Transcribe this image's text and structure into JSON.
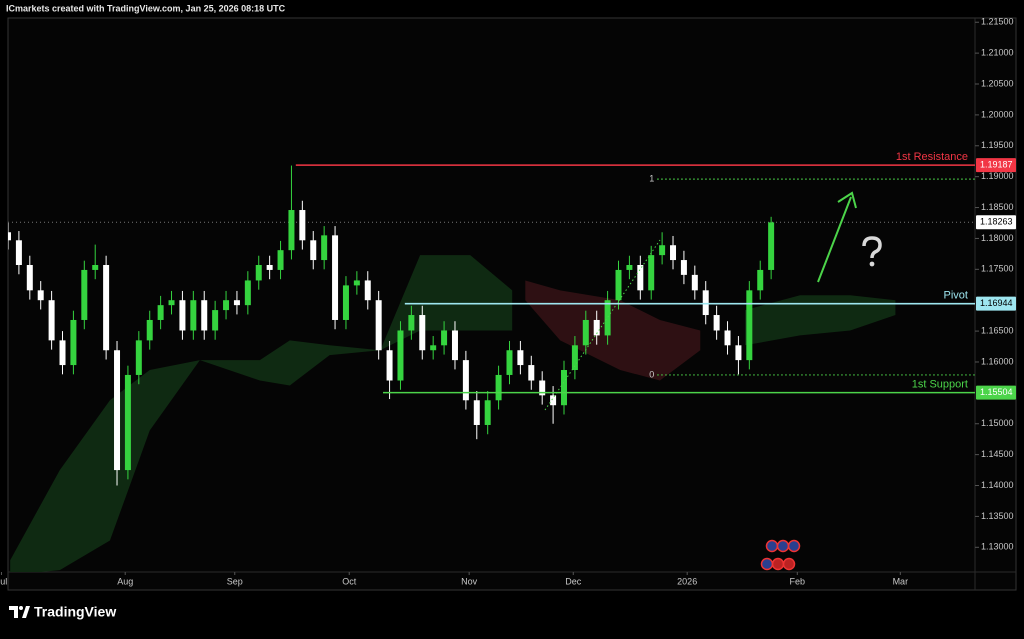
{
  "header": "ICmarkets created with TradingView.com, Jan 25, 2026 08:18 UTC",
  "footer": "TradingView",
  "chart_data": {
    "type": "candlestick",
    "up_color": "#35d43f",
    "down_color": "#ffffff",
    "x": [
      0,
      2,
      4,
      6,
      8,
      10,
      12,
      14,
      16,
      18,
      20,
      22,
      24,
      26,
      28,
      30,
      32,
      34,
      36,
      38,
      40,
      42,
      44,
      46,
      48,
      50,
      52,
      54,
      56,
      58,
      60,
      62,
      64,
      66,
      68,
      70,
      72,
      74,
      76,
      78,
      80,
      82,
      84,
      86,
      88,
      90,
      92,
      94,
      96,
      98,
      100,
      102,
      104,
      106,
      108,
      110,
      112,
      114,
      116,
      118,
      120,
      122,
      124,
      126,
      128,
      130,
      132,
      134,
      136,
      138,
      140
    ],
    "candles": [
      [
        1.181,
        1.1825,
        1.1782,
        1.1797
      ],
      [
        1.1797,
        1.1812,
        1.1742,
        1.1757
      ],
      [
        1.1757,
        1.1772,
        1.1701,
        1.1716
      ],
      [
        1.1716,
        1.1731,
        1.1685,
        1.17
      ],
      [
        1.17,
        1.1715,
        1.162,
        1.1635
      ],
      [
        1.1635,
        1.165,
        1.158,
        1.1595
      ],
      [
        1.1595,
        1.1683,
        1.158,
        1.1668
      ],
      [
        1.1668,
        1.1764,
        1.1653,
        1.1749
      ],
      [
        1.1749,
        1.179,
        1.1734,
        1.1757
      ],
      [
        1.1757,
        1.1772,
        1.1604,
        1.1619
      ],
      [
        1.1619,
        1.1634,
        1.14,
        1.1425
      ],
      [
        1.1425,
        1.1594,
        1.141,
        1.1579
      ],
      [
        1.1579,
        1.165,
        1.1564,
        1.1635
      ],
      [
        1.1635,
        1.1683,
        1.162,
        1.1668
      ],
      [
        1.1668,
        1.1707,
        1.1653,
        1.1692
      ],
      [
        1.1692,
        1.1715,
        1.1677,
        1.17
      ],
      [
        1.17,
        1.1715,
        1.1636,
        1.1651
      ],
      [
        1.1651,
        1.1715,
        1.1636,
        1.17
      ],
      [
        1.17,
        1.1715,
        1.1636,
        1.1651
      ],
      [
        1.1651,
        1.1699,
        1.1636,
        1.1684
      ],
      [
        1.1684,
        1.1715,
        1.1669,
        1.17
      ],
      [
        1.17,
        1.1715,
        1.1677,
        1.1692
      ],
      [
        1.1692,
        1.1747,
        1.1677,
        1.1732
      ],
      [
        1.1732,
        1.1772,
        1.1717,
        1.1757
      ],
      [
        1.1757,
        1.1772,
        1.1734,
        1.1749
      ],
      [
        1.1749,
        1.1796,
        1.1734,
        1.1781
      ],
      [
        1.1781,
        1.1918,
        1.1766,
        1.1846
      ],
      [
        1.1846,
        1.1861,
        1.1782,
        1.1797
      ],
      [
        1.1797,
        1.1812,
        1.175,
        1.1765
      ],
      [
        1.1765,
        1.182,
        1.175,
        1.1805
      ],
      [
        1.1805,
        1.182,
        1.1653,
        1.1668
      ],
      [
        1.1668,
        1.1739,
        1.1653,
        1.1724
      ],
      [
        1.1724,
        1.1747,
        1.1709,
        1.1732
      ],
      [
        1.1732,
        1.1747,
        1.1685,
        1.17
      ],
      [
        1.17,
        1.1715,
        1.1604,
        1.1619
      ],
      [
        1.1619,
        1.1634,
        1.154,
        1.157
      ],
      [
        1.157,
        1.1666,
        1.1555,
        1.1651
      ],
      [
        1.1651,
        1.1691,
        1.1636,
        1.1676
      ],
      [
        1.1676,
        1.1691,
        1.1604,
        1.1619
      ],
      [
        1.1619,
        1.1642,
        1.1604,
        1.1627
      ],
      [
        1.1627,
        1.1666,
        1.1612,
        1.1651
      ],
      [
        1.1651,
        1.1666,
        1.1588,
        1.1603
      ],
      [
        1.1603,
        1.1618,
        1.1523,
        1.1538
      ],
      [
        1.1538,
        1.1553,
        1.1475,
        1.1498
      ],
      [
        1.1498,
        1.1553,
        1.1483,
        1.1538
      ],
      [
        1.1538,
        1.1594,
        1.1523,
        1.1579
      ],
      [
        1.1579,
        1.1634,
        1.1564,
        1.1619
      ],
      [
        1.1619,
        1.1634,
        1.158,
        1.1595
      ],
      [
        1.1595,
        1.161,
        1.1555,
        1.157
      ],
      [
        1.157,
        1.1585,
        1.1531,
        1.1546
      ],
      [
        1.1546,
        1.1561,
        1.15,
        1.153
      ],
      [
        1.153,
        1.1602,
        1.1515,
        1.1587
      ],
      [
        1.1587,
        1.1642,
        1.1572,
        1.1627
      ],
      [
        1.1627,
        1.1683,
        1.1612,
        1.1668
      ],
      [
        1.1668,
        1.1683,
        1.1628,
        1.1643
      ],
      [
        1.1643,
        1.1715,
        1.1628,
        1.17
      ],
      [
        1.17,
        1.1764,
        1.1685,
        1.1749
      ],
      [
        1.1749,
        1.1772,
        1.1734,
        1.1757
      ],
      [
        1.1757,
        1.1772,
        1.1701,
        1.1716
      ],
      [
        1.1716,
        1.1788,
        1.1701,
        1.1773
      ],
      [
        1.1773,
        1.181,
        1.1758,
        1.1789
      ],
      [
        1.1789,
        1.1804,
        1.175,
        1.1765
      ],
      [
        1.1765,
        1.178,
        1.1726,
        1.1741
      ],
      [
        1.1741,
        1.1756,
        1.1701,
        1.1716
      ],
      [
        1.1716,
        1.1731,
        1.1661,
        1.1676
      ],
      [
        1.1676,
        1.1691,
        1.1636,
        1.1651
      ],
      [
        1.1651,
        1.1666,
        1.1612,
        1.1627
      ],
      [
        1.1627,
        1.1642,
        1.158,
        1.1603
      ],
      [
        1.1603,
        1.1731,
        1.1588,
        1.1716
      ],
      [
        1.1716,
        1.1764,
        1.1701,
        1.1749
      ],
      [
        1.1749,
        1.1835,
        1.1734,
        1.1826
      ]
    ],
    "xlim": [
      0,
      177.4
    ],
    "xticks": [
      {
        "value": -1.2,
        "label": "Jul"
      },
      {
        "value": 21.5,
        "label": "Aug"
      },
      {
        "value": 41.6,
        "label": "Sep"
      },
      {
        "value": 62.6,
        "label": "Oct"
      },
      {
        "value": 84.6,
        "label": "Nov"
      },
      {
        "value": 103.7,
        "label": "Dec"
      },
      {
        "value": 124.6,
        "label": "2026"
      },
      {
        "value": 144.8,
        "label": "Feb"
      },
      {
        "value": 163.7,
        "label": "Mar"
      }
    ],
    "ylim": [
      1.126,
      1.2186
    ],
    "yticks": [
      {
        "value": 1.215,
        "label": "1.21500"
      },
      {
        "value": 1.21,
        "label": "1.21000"
      },
      {
        "value": 1.205,
        "label": "1.20500"
      },
      {
        "value": 1.2,
        "label": "1.20000"
      },
      {
        "value": 1.195,
        "label": "1.19500"
      },
      {
        "value": 1.19,
        "label": "1.19000"
      },
      {
        "value": 1.185,
        "label": "1.18500"
      },
      {
        "value": 1.18,
        "label": "1.18000"
      },
      {
        "value": 1.175,
        "label": "1.17500"
      },
      {
        "value": 1.165,
        "label": "1.16500"
      },
      {
        "value": 1.16,
        "label": "1.16000"
      },
      {
        "value": 1.15,
        "label": "1.15000"
      },
      {
        "value": 1.145,
        "label": "1.14500"
      },
      {
        "value": 1.14,
        "label": "1.14000"
      },
      {
        "value": 1.135,
        "label": "1.13500"
      },
      {
        "value": 1.13,
        "label": "1.13000"
      }
    ],
    "clouds": [
      {
        "color": "#0f2a12",
        "x": [
          0.4,
          9.5,
          18.7,
          26,
          35.2,
          46.2,
          51.7,
          59,
          68.3,
          75.6,
          84.8,
          92.5
        ],
        "upper": [
          1.1279,
          1.1425,
          1.1538,
          1.1587,
          1.1603,
          1.1603,
          1.1635,
          1.1627,
          1.1619,
          1.1773,
          1.1773,
          1.1716
        ],
        "lower": [
          1.1255,
          1.1263,
          1.1311,
          1.1489,
          1.1603,
          1.157,
          1.1562,
          1.1611,
          1.1619,
          1.1651,
          1.1651,
          1.1651
        ]
      },
      {
        "color": "#2e1013",
        "x": [
          94.9,
          101.3,
          112.3,
          119.6,
          127
        ],
        "upper": [
          1.1732,
          1.1716,
          1.17,
          1.1668,
          1.1651
        ],
        "lower": [
          1.17,
          1.1635,
          1.1587,
          1.157,
          1.1619
        ]
      },
      {
        "color": "#0f2a12",
        "x": [
          135.2,
          145.3,
          154.5,
          162.8
        ],
        "upper": [
          1.1684,
          1.1708,
          1.1708,
          1.17
        ],
        "lower": [
          1.1627,
          1.1643,
          1.1651,
          1.1676
        ]
      }
    ],
    "levels": [
      {
        "label": "1st Resistance",
        "value": 1.19187,
        "start": 52.8,
        "color": "#f23645"
      },
      {
        "label": "Pivot",
        "value": 1.16944,
        "start": 72.8,
        "color": "#9ee6f0"
      },
      {
        "label": "1st Support",
        "value": 1.15504,
        "start": 68.8,
        "color": "#4cd44a"
      }
    ],
    "fib": {
      "color": "#4cd44a",
      "start": 119.1,
      "lines": [
        {
          "ratio": 1,
          "value": 1.1896
        },
        {
          "ratio": 0,
          "value": 1.1579
        }
      ]
    },
    "last_price": 1.18263
  }
}
